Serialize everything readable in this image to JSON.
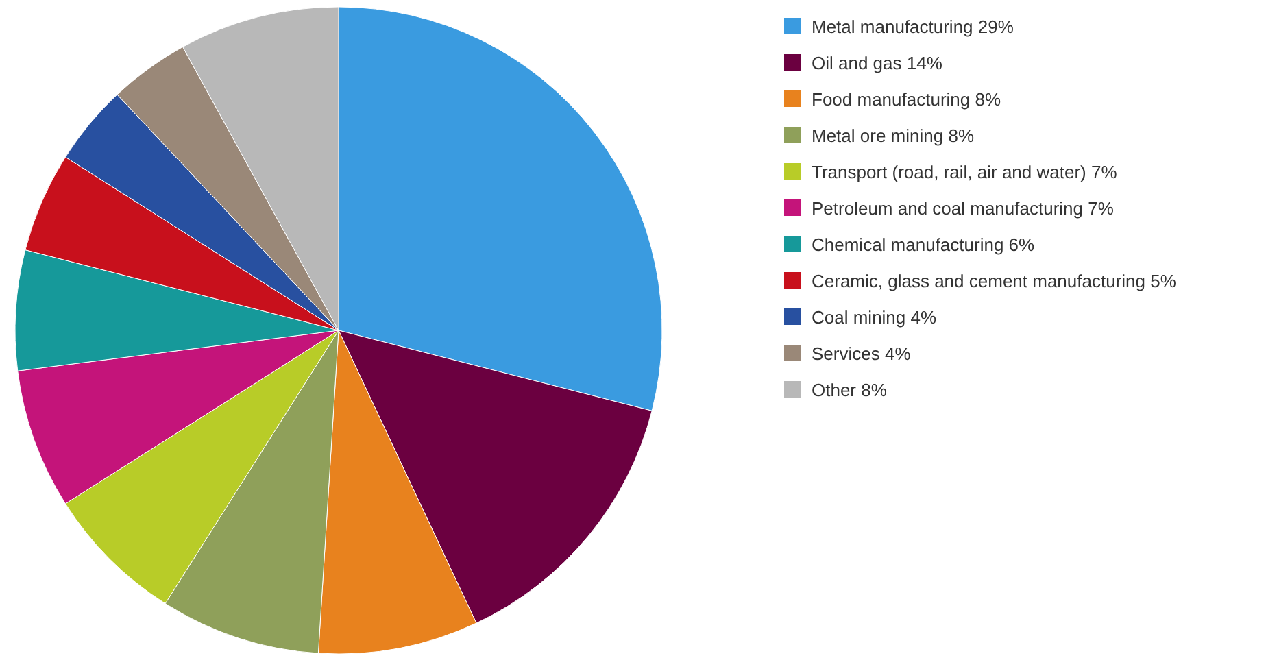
{
  "chart_data": {
    "type": "pie",
    "categories": [
      "Metal manufacturing 29%",
      "Oil and gas 14%",
      "Food manufacturing 8%",
      "Metal ore mining 8%",
      "Transport (road, rail, air and water) 7%",
      "Petroleum and coal manufacturing 7%",
      "Chemical manufacturing 6%",
      "Ceramic, glass and cement manufacturing 5%",
      "Coal mining 4%",
      "Services 4%",
      "Other 8%"
    ],
    "values": [
      29,
      14,
      8,
      8,
      7,
      7,
      6,
      5,
      4,
      4,
      8
    ],
    "colors": [
      "#3a9be0",
      "#6b0040",
      "#e8821e",
      "#8fa05a",
      "#b8cc28",
      "#c4147a",
      "#16999a",
      "#c8101c",
      "#2850a0",
      "#9a8878",
      "#b8b8b8"
    ],
    "legend": "right"
  }
}
